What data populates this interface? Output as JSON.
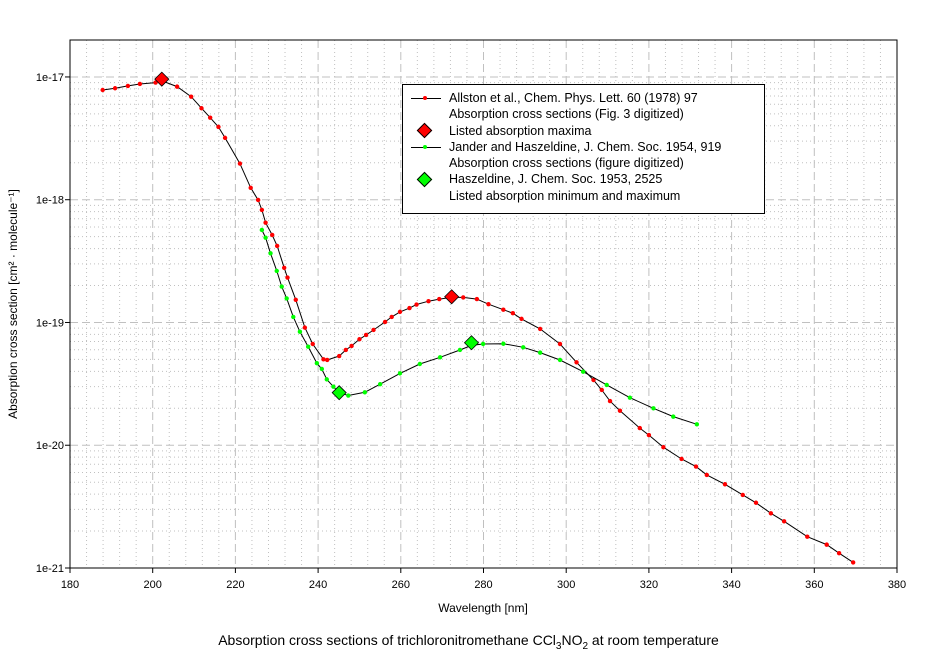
{
  "chart_data": {
    "type": "line",
    "title_parts": {
      "prefix": "Absorption cross sections of trichloronitromethane CCl",
      "sub1": "3",
      "mid": "NO",
      "sub2": "2",
      "suffix": " at room temperature"
    },
    "xlabel": "Wavelength [nm]",
    "ylabel": "Absorption cross section [cm² · molecule⁻¹]",
    "xlim": [
      180,
      380
    ],
    "ylim": [
      1e-21,
      2e-17
    ],
    "yscale": "log",
    "xticks": [
      180,
      200,
      220,
      240,
      260,
      280,
      300,
      320,
      340,
      360,
      380
    ],
    "xtick_labels": [
      "180",
      "200",
      "220",
      "240",
      "260",
      "280",
      "300",
      "320",
      "340",
      "360",
      "380"
    ],
    "yticks": [
      1e-17,
      1e-18,
      1e-19,
      1e-20,
      1e-21
    ],
    "ytick_labels": [
      "1e-17",
      "1e-18",
      "1e-19",
      "1e-20",
      "1e-21"
    ],
    "grid": true,
    "legend_position": "top-right",
    "colors": {
      "red": "#ff0000",
      "green": "#00ff00",
      "line": "#000000",
      "grid": "#c0c0c0"
    },
    "series": [
      {
        "name": "Allston et al., Chem. Phys. Lett. 60 (1978) 97",
        "name2": "Absorption cross sections (Fig. 3 digitized)",
        "kind": "line",
        "color": "#ff0000",
        "x": [
          187.9,
          190.9,
          194.0,
          196.9,
          200.7,
          202.2,
          205.9,
          209.3,
          211.8,
          213.9,
          215.9,
          217.5,
          221.1,
          223.7,
          225.5,
          226.4,
          227.3,
          228.9,
          230.1,
          231.8,
          232.6,
          234.6,
          236.8,
          238.7,
          241.3,
          242.2,
          245.1,
          246.7,
          248.1,
          250.0,
          251.6,
          253.4,
          256.2,
          257.8,
          259.8,
          262.1,
          263.8,
          266.7,
          269.3,
          272.3,
          275.1,
          278.4,
          281.2,
          284.8,
          287.1,
          289.2,
          293.7,
          298.5,
          302.5,
          306.6,
          308.6,
          310.6,
          313.0,
          317.8,
          320.0,
          323.5,
          327.9,
          331.4,
          334.0,
          338.4,
          342.7,
          345.9,
          349.5,
          352.7,
          358.3,
          363.0,
          366.0,
          369.4
        ],
        "y": [
          7.83e-18,
          8.09e-18,
          8.45e-18,
          8.77e-18,
          9e-18,
          9.3e-18,
          8.34e-18,
          6.91e-18,
          5.56e-18,
          4.66e-18,
          3.92e-18,
          3.19e-18,
          1.97e-18,
          1.25e-18,
          9.95e-19,
          8.26e-19,
          6.5e-19,
          5.16e-19,
          4.2e-19,
          2.79e-19,
          2.32e-19,
          1.53e-19,
          9.08e-20,
          6.68e-20,
          5.01e-20,
          4.95e-20,
          5.33e-20,
          5.97e-20,
          6.44e-20,
          7.3e-20,
          7.91e-20,
          8.69e-20,
          1.01e-19,
          1.11e-19,
          1.22e-19,
          1.31e-19,
          1.4e-19,
          1.49e-19,
          1.55e-19,
          1.6e-19,
          1.6e-19,
          1.55e-19,
          1.41e-19,
          1.27e-19,
          1.19e-19,
          1.07e-19,
          8.86e-20,
          6.68e-20,
          4.74e-20,
          3.4e-20,
          2.82e-20,
          2.29e-20,
          1.91e-20,
          1.38e-20,
          1.21e-20,
          9.63e-21,
          7.73e-21,
          6.7e-21,
          5.73e-21,
          4.81e-21,
          3.94e-21,
          3.4e-21,
          2.79e-21,
          2.4e-21,
          1.8e-21,
          1.55e-21,
          1.32e-21,
          1.11e-21
        ]
      },
      {
        "name": "Listed absorption maxima",
        "kind": "marker",
        "color": "#ff0000",
        "x": [
          202.2,
          272.3
        ],
        "y": [
          9.6e-18,
          1.62e-19
        ]
      },
      {
        "name": "Jander and Haszeldine, J. Chem. Soc. 1954, 919",
        "name2": "Absorption cross sections (figure digitized)",
        "kind": "line",
        "color": "#00ff00",
        "x": [
          226.4,
          227.3,
          228.5,
          230.0,
          231.2,
          232.4,
          234.0,
          235.6,
          237.6,
          239.7,
          240.9,
          242.1,
          243.7,
          245.1,
          247.3,
          251.3,
          255.0,
          259.8,
          264.6,
          269.5,
          274.3,
          277.1,
          279.9,
          284.8,
          289.6,
          293.7,
          298.5,
          304.1,
          309.8,
          315.4,
          321.1,
          325.9,
          331.6
        ],
        "y": [
          5.67e-19,
          4.91e-19,
          3.66e-19,
          2.63e-19,
          1.96e-19,
          1.57e-19,
          1.11e-19,
          8.41e-20,
          6.35e-20,
          4.66e-20,
          4.18e-20,
          3.44e-20,
          3e-20,
          2.68e-20,
          2.54e-20,
          2.7e-20,
          3.14e-20,
          3.85e-20,
          4.59e-20,
          5.2e-20,
          5.97e-20,
          6.5e-20,
          6.68e-20,
          6.71e-20,
          6.28e-20,
          5.68e-20,
          4.95e-20,
          3.97e-20,
          3.1e-20,
          2.44e-20,
          2e-20,
          1.71e-20,
          1.48e-20
        ]
      },
      {
        "name": "Haszeldine, J. Chem. Soc. 1953, 2525",
        "name2": "Listed absorption minimum and maximum",
        "kind": "marker",
        "color": "#00ff00",
        "x": [
          245.1,
          277.1
        ],
        "y": [
          2.68e-20,
          6.84e-20
        ]
      }
    ]
  }
}
